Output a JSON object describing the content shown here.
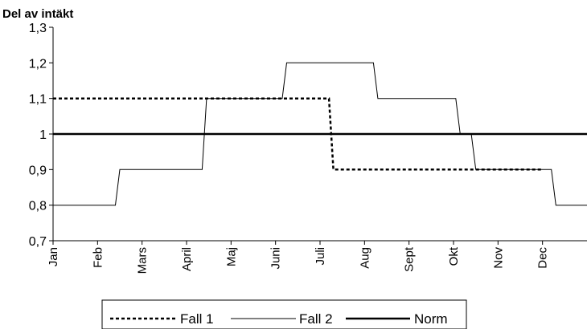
{
  "chart_data": {
    "type": "line",
    "title": "",
    "ylabel": "Del av intäkt",
    "xlabel": "",
    "categories": [
      "Jan",
      "Feb",
      "Mars",
      "April",
      "Maj",
      "Juni",
      "Juli",
      "Aug",
      "Sept",
      "Okt",
      "Nov",
      "Dec"
    ],
    "ylim": [
      0.7,
      1.3
    ],
    "yticks": [
      "0,7",
      "0,8",
      "0,9",
      "1",
      "1,1",
      "1,2",
      "1,3"
    ],
    "grid": false,
    "legend_position": "bottom",
    "series": [
      {
        "name": "Fall 1",
        "style": "dotted",
        "color": "#000000",
        "x": [
          0,
          6.2,
          6.3,
          11
        ],
        "values": [
          1.1,
          1.1,
          0.9,
          0.9
        ]
      },
      {
        "name": "Fall 2",
        "style": "thin-solid",
        "color": "#000000",
        "x": [
          0,
          1.4,
          1.5,
          3.35,
          3.45,
          5.15,
          5.25,
          7.2,
          7.3,
          9.05,
          9.15,
          9.4,
          9.5,
          11.2,
          11.3,
          12
        ],
        "values": [
          0.8,
          0.8,
          0.9,
          0.9,
          1.1,
          1.1,
          1.2,
          1.2,
          1.1,
          1.1,
          1.0,
          1.0,
          0.9,
          0.9,
          0.8,
          0.8
        ]
      },
      {
        "name": "Norm",
        "style": "thick-solid",
        "color": "#000000",
        "x": [
          0,
          12
        ],
        "values": [
          1.0,
          1.0
        ]
      }
    ]
  }
}
